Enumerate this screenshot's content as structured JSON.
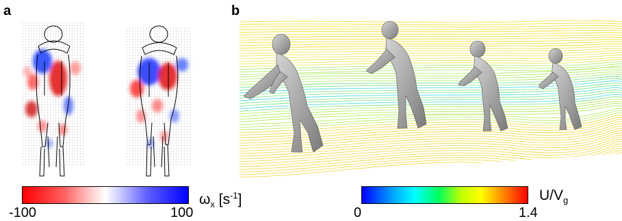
{
  "panels": {
    "a": {
      "letter": "a",
      "colorbar": {
        "label_symbol": "ω",
        "label_sub": "x",
        "label_unit": " [s",
        "label_unit_sup": "-1",
        "label_unit_close": "]",
        "min_label": "-100",
        "max_label": "100",
        "colors": [
          "#ff0000",
          "#ffffff",
          "#0000ff"
        ]
      }
    },
    "b": {
      "letter": "b",
      "colorbar": {
        "label_main": "U/V",
        "label_sub": "g",
        "min_label": "0",
        "max_label": "1.4",
        "colors": [
          "#0000ff",
          "#00a0ff",
          "#00ffff",
          "#00ff60",
          "#c0ff00",
          "#ffff00",
          "#ff8000",
          "#ff0000"
        ]
      }
    }
  }
}
